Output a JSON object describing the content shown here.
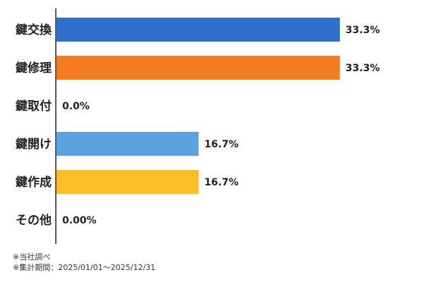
{
  "chart_data": {
    "type": "bar",
    "orientation": "horizontal",
    "categories": [
      "鍵交換",
      "鍵修理",
      "鍵取付",
      "鍵開け",
      "鍵作成",
      "その他"
    ],
    "values": [
      33.3,
      33.3,
      0.0,
      16.7,
      16.7,
      0.0
    ],
    "value_labels": [
      "33.3%",
      "33.3%",
      "0.0%",
      "16.7%",
      "16.7%",
      "0.00%"
    ],
    "colors": [
      "#2f6fcc",
      "#f47b20",
      "#9e9e9e",
      "#5ba3e0",
      "#fbbd24",
      "#9e9e9e"
    ],
    "xlim": [
      0,
      50
    ],
    "grid": false,
    "title": "",
    "xlabel": "",
    "ylabel": ""
  },
  "notes": [
    "※当社調べ",
    "※集計期間：2025/01/01～2025/12/31"
  ]
}
